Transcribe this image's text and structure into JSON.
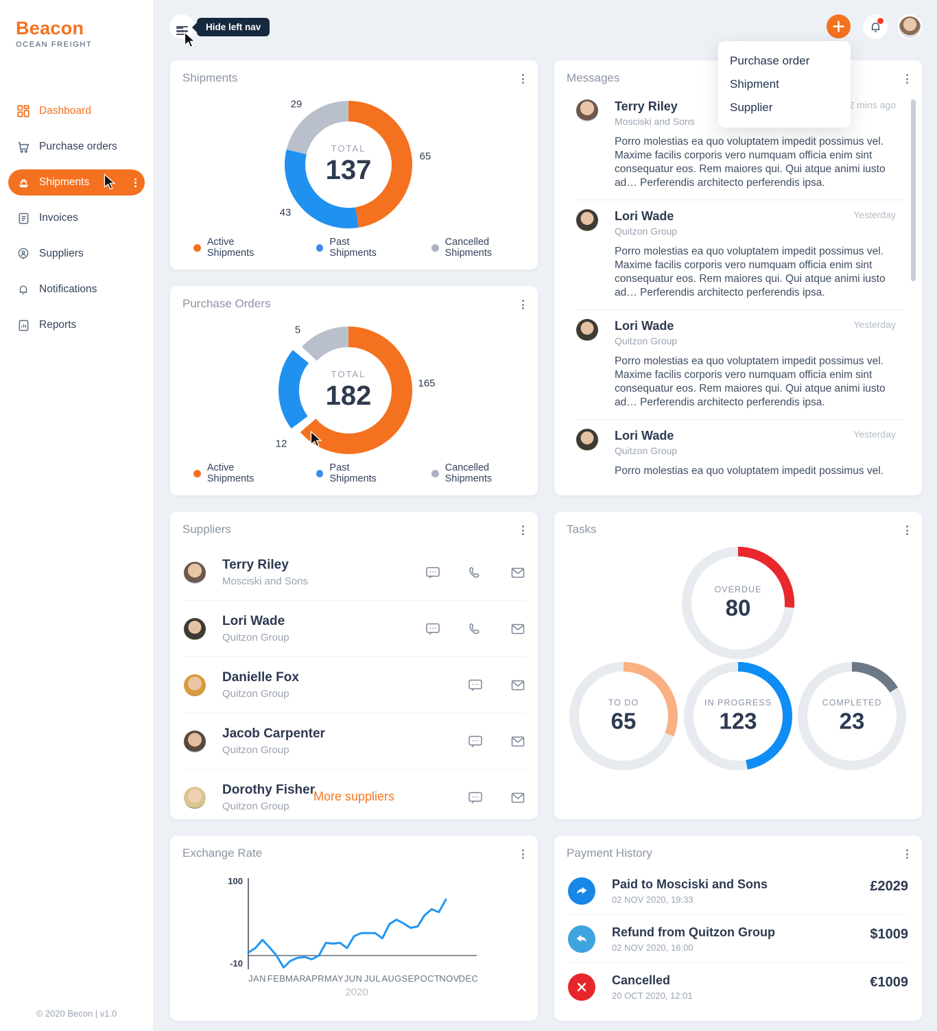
{
  "brand": {
    "name": "Beacon",
    "tagline": "OCEAN FREIGHT",
    "footer": "© 2020 Becon | v1.0"
  },
  "topbar": {
    "tooltip": "Hide left nav"
  },
  "quick_add_menu": {
    "items": [
      "Purchase order",
      "Shipment",
      "Supplier"
    ]
  },
  "sidebar": {
    "items": [
      {
        "label": "Dashboard"
      },
      {
        "label": "Purchase orders"
      },
      {
        "label": "Shipments",
        "active": true
      },
      {
        "label": "Invoices"
      },
      {
        "label": "Suppliers"
      },
      {
        "label": "Notifications"
      },
      {
        "label": "Reports"
      }
    ]
  },
  "colors": {
    "accent_orange": "#F4711F",
    "donut_blue": "#2191F0",
    "donut_gray": "#B9C0CC",
    "gauge_red": "#E8282C",
    "gauge_orange": "#F9B183",
    "gauge_blue": "#0E8DF5",
    "gauge_gray": "#6C7884",
    "line_blue": "#2196F3"
  },
  "messages": {
    "title": "Messages",
    "items": [
      {
        "name": "Terry Riley",
        "company": "Mosciski and Sons",
        "time": "12 mins ago",
        "body": "Porro molestias ea quo voluptatem impedit possimus vel. Maxime facilis corporis vero numquam officia enim sint consequatur eos. Rem maiores qui. Qui atque animi iusto ad… Perferendis architecto perferendis ipsa."
      },
      {
        "name": "Lori Wade",
        "company": "Quitzon Group",
        "time": "Yesterday",
        "body": "Porro molestias ea quo voluptatem impedit possimus vel. Maxime facilis corporis vero numquam officia enim sint consequatur eos. Rem maiores qui. Qui atque animi iusto ad… Perferendis architecto perferendis ipsa."
      },
      {
        "name": "Lori Wade",
        "company": "Quitzon Group",
        "time": "Yesterday",
        "body": "Porro molestias ea quo voluptatem impedit possimus vel. Maxime facilis corporis vero numquam officia enim sint consequatur eos. Rem maiores qui. Qui atque animi iusto ad… Perferendis architecto perferendis ipsa."
      },
      {
        "name": "Lori Wade",
        "company": "Quitzon Group",
        "time": "Yesterday",
        "body": "Porro molestias ea quo voluptatem impedit possimus vel."
      }
    ]
  },
  "suppliers": {
    "title": "Suppliers",
    "rows": [
      {
        "name": "Terry Riley",
        "company": "Mosciski and Sons"
      },
      {
        "name": "Lori Wade",
        "company": "Quitzon Group"
      },
      {
        "name": "Danielle Fox",
        "company": "Quitzon Group"
      },
      {
        "name": "Jacob Carpenter",
        "company": "Quitzon Group"
      },
      {
        "name": "Dorothy Fisher",
        "company": "Quitzon Group"
      }
    ],
    "more_label": "More suppliers"
  },
  "payments": {
    "title": "Payment History",
    "rows": [
      {
        "title": "Paid to Mosciski and Sons",
        "date": "02 NOV 2020, 19:33",
        "amount": "£2029"
      },
      {
        "title": "Refund from Quitzon Group",
        "date": "02 NOV 2020, 16:00",
        "amount": "$1009"
      },
      {
        "title": "Cancelled",
        "date": "20 OCT 2020, 12:01",
        "amount": "€1009"
      }
    ]
  },
  "chart_data": [
    {
      "type": "donut",
      "title": "Shipments",
      "center_label": "TOTAL",
      "total": 137,
      "segments": [
        {
          "label": "Active Shipments",
          "value": 65,
          "color": "#F4711F"
        },
        {
          "label": "Past Shipments",
          "value": 43,
          "color": "#2191F0"
        },
        {
          "label": "Cancelled Shipments",
          "value": 29,
          "color": "#B9C0CC"
        }
      ],
      "legend_position": "bottom"
    },
    {
      "type": "donut",
      "title": "Purchase Orders",
      "center_label": "TOTAL",
      "total": 182,
      "segments": [
        {
          "label": "Active Shipments",
          "value": 165,
          "color": "#F4711F"
        },
        {
          "label": "Past Shipments",
          "value": 12,
          "color": "#2191F0"
        },
        {
          "label": "Cancelled Shipments",
          "value": 5,
          "color": "#B9C0CC"
        }
      ],
      "display_arcs_deg": [
        [
          0,
          229
        ],
        [
          233,
          309
        ],
        [
          313,
          360
        ]
      ],
      "explode_segment": 1,
      "legend_position": "bottom"
    },
    {
      "type": "gauges",
      "title": "Tasks",
      "gauges": [
        {
          "label": "OVERDUE",
          "value": 80,
          "color": "#E8282C",
          "display_sweep_deg": 95
        },
        {
          "label": "TO DO",
          "value": 65,
          "color": "#F9B183",
          "display_sweep_deg": 112
        },
        {
          "label": "IN PROGRESS",
          "value": 123,
          "color": "#0E8DF5",
          "display_sweep_deg": 170
        },
        {
          "label": "COMPLETED",
          "value": 23,
          "color": "#6C7884",
          "display_sweep_deg": 58
        }
      ]
    },
    {
      "type": "line",
      "title": "Exchange Rate",
      "x_labels": [
        "JAN",
        "FEB",
        "MAR",
        "APR",
        "MAY",
        "JUN",
        "JUL",
        "AUG",
        "SEP",
        "OCT",
        "NOV",
        "DEC"
      ],
      "year_label": "2020",
      "y_ticks": [
        100,
        -10
      ],
      "baseline": 0,
      "ylim": [
        -20,
        100
      ],
      "color": "#2196F3",
      "values": [
        4,
        10,
        21,
        11,
        0,
        -16,
        -7,
        -3,
        -2,
        -5,
        0,
        17,
        16,
        17,
        10,
        26,
        30,
        30,
        30,
        23,
        42,
        48,
        43,
        37,
        39,
        54,
        62,
        58,
        75
      ]
    }
  ]
}
